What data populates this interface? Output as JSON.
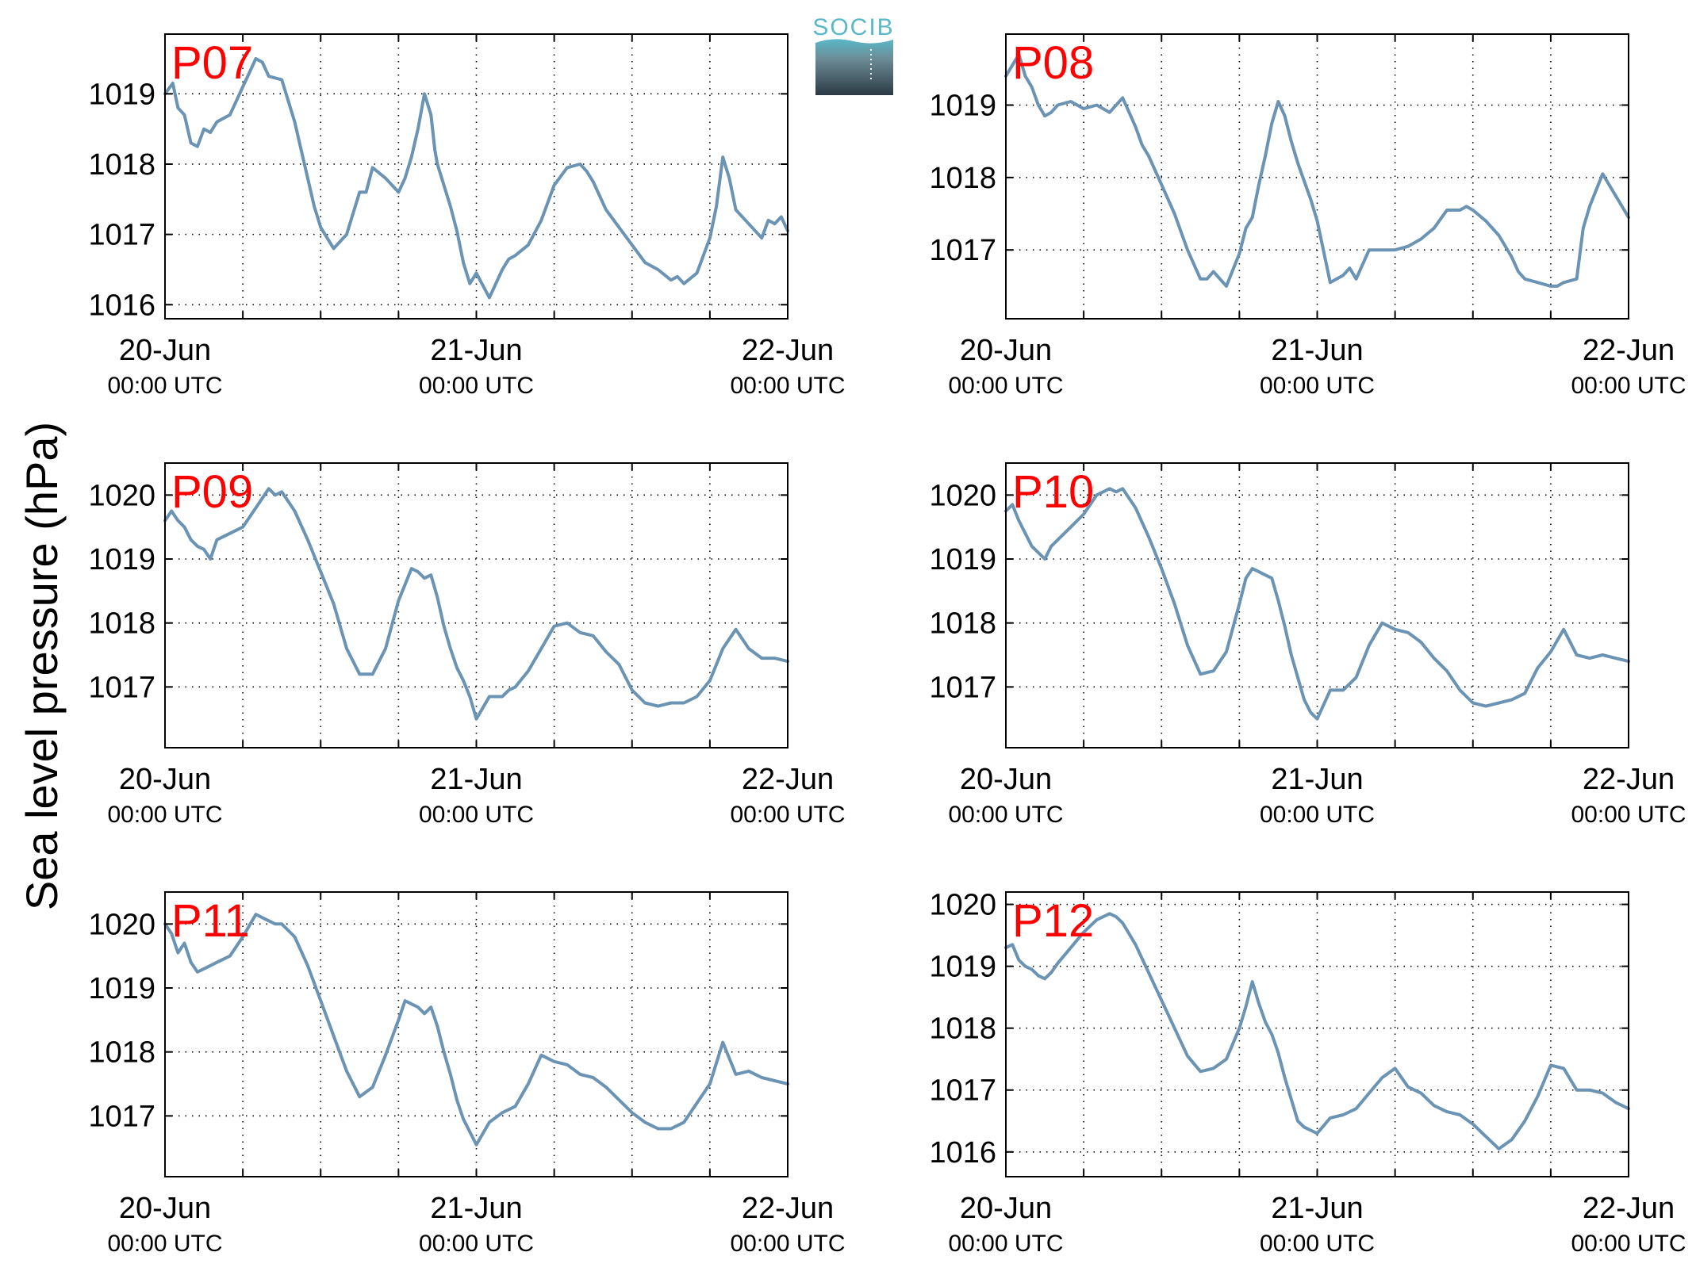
{
  "figure": {
    "ylabel": "Sea level pressure (hPa)",
    "logo_text": "SOCIB",
    "line_color": "#6a93b4",
    "label_color": "#ff0000"
  },
  "chart_data": [
    {
      "type": "line",
      "title": "P07",
      "xlim": [
        0,
        48
      ],
      "ylim": [
        1015.8,
        1019.85
      ],
      "yticks": [
        1016,
        1017,
        1018,
        1019
      ],
      "xticks": [
        0,
        6,
        12,
        18,
        24,
        30,
        36,
        42,
        48
      ],
      "xtick_labels": [
        {
          "x": 0,
          "date": "20-Jun",
          "time": "00:00 UTC"
        },
        {
          "x": 24,
          "date": "21-Jun",
          "time": "00:00 UTC"
        },
        {
          "x": 48,
          "date": "22-Jun",
          "time": "00:00 UTC"
        }
      ],
      "grid": true,
      "x": [
        0,
        0.6,
        1,
        1.5,
        2,
        2.5,
        3,
        3.5,
        4,
        5,
        6,
        7,
        7.5,
        8,
        9,
        9.5,
        10,
        10.5,
        11,
        11.5,
        12,
        13,
        14,
        15,
        15.5,
        16,
        17,
        18,
        18.5,
        19,
        19.5,
        20,
        20.5,
        20.8,
        21,
        21.5,
        22,
        22.5,
        23,
        23.5,
        24,
        25,
        26,
        26.5,
        27,
        28,
        29,
        30,
        31,
        32,
        32.5,
        33,
        34,
        35,
        36,
        37,
        38,
        39,
        39.5,
        40,
        41,
        42,
        42.5,
        43,
        43.5,
        44,
        45,
        46,
        46.5,
        47,
        47.5,
        48
      ],
      "y": [
        1019.0,
        1019.15,
        1018.8,
        1018.7,
        1018.3,
        1018.25,
        1018.5,
        1018.45,
        1018.6,
        1018.7,
        1019.1,
        1019.5,
        1019.45,
        1019.25,
        1019.2,
        1018.9,
        1018.6,
        1018.2,
        1017.8,
        1017.4,
        1017.1,
        1016.8,
        1017.0,
        1017.6,
        1017.6,
        1017.95,
        1017.8,
        1017.6,
        1017.8,
        1018.1,
        1018.5,
        1019.0,
        1018.7,
        1018.2,
        1018.0,
        1017.7,
        1017.4,
        1017.05,
        1016.6,
        1016.3,
        1016.45,
        1016.1,
        1016.5,
        1016.65,
        1016.7,
        1016.85,
        1017.2,
        1017.7,
        1017.95,
        1018.0,
        1017.9,
        1017.75,
        1017.35,
        1017.1,
        1016.85,
        1016.6,
        1016.5,
        1016.35,
        1016.4,
        1016.3,
        1016.45,
        1016.95,
        1017.4,
        1018.1,
        1017.8,
        1017.35,
        1017.15,
        1016.95,
        1017.2,
        1017.15,
        1017.25,
        1017.05
      ]
    },
    {
      "type": "line",
      "title": "P08",
      "xlim": [
        0,
        48
      ],
      "ylim": [
        1016.05,
        1019.98
      ],
      "yticks": [
        1017,
        1018,
        1019
      ],
      "xticks": [
        0,
        6,
        12,
        18,
        24,
        30,
        36,
        42,
        48
      ],
      "xtick_labels": [
        {
          "x": 0,
          "date": "20-Jun",
          "time": "00:00 UTC"
        },
        {
          "x": 24,
          "date": "21-Jun",
          "time": "00:00 UTC"
        },
        {
          "x": 48,
          "date": "22-Jun",
          "time": "00:00 UTC"
        }
      ],
      "grid": true,
      "x": [
        0,
        0.5,
        1,
        1.5,
        2,
        2.5,
        3,
        3.5,
        4,
        5,
        6,
        7,
        8,
        9,
        9.5,
        10,
        10.5,
        11,
        11.5,
        12,
        13,
        14,
        15,
        15.5,
        16,
        17,
        18,
        18.5,
        19,
        19.5,
        20,
        20.5,
        21,
        21.5,
        22,
        22.5,
        23,
        23.5,
        24,
        25,
        26,
        26.5,
        27,
        28,
        29,
        30,
        31,
        32,
        33,
        34,
        35,
        35.5,
        36,
        37,
        38,
        39,
        39.5,
        40,
        41,
        42,
        42.5,
        43,
        44,
        44.5,
        45,
        46,
        47,
        48
      ],
      "y": [
        1019.4,
        1019.55,
        1019.7,
        1019.4,
        1019.25,
        1019.0,
        1018.85,
        1018.9,
        1019.0,
        1019.05,
        1018.95,
        1019.0,
        1018.9,
        1019.1,
        1018.9,
        1018.7,
        1018.45,
        1018.3,
        1018.1,
        1017.9,
        1017.5,
        1017.0,
        1016.6,
        1016.6,
        1016.7,
        1016.5,
        1016.95,
        1017.3,
        1017.45,
        1017.9,
        1018.3,
        1018.75,
        1019.05,
        1018.85,
        1018.5,
        1018.2,
        1017.95,
        1017.7,
        1017.4,
        1016.55,
        1016.65,
        1016.75,
        1016.6,
        1017.0,
        1017.0,
        1017.0,
        1017.05,
        1017.15,
        1017.3,
        1017.55,
        1017.55,
        1017.6,
        1017.55,
        1017.4,
        1017.2,
        1016.9,
        1016.7,
        1016.6,
        1016.55,
        1016.5,
        1016.5,
        1016.55,
        1016.6,
        1017.3,
        1017.6,
        1018.05,
        1017.75,
        1017.45
      ]
    },
    {
      "type": "line",
      "title": "P09",
      "xlim": [
        0,
        48
      ],
      "ylim": [
        1016.05,
        1020.5
      ],
      "yticks": [
        1017,
        1018,
        1019,
        1020
      ],
      "xticks": [
        0,
        6,
        12,
        18,
        24,
        30,
        36,
        42,
        48
      ],
      "xtick_labels": [
        {
          "x": 0,
          "date": "20-Jun",
          "time": "00:00 UTC"
        },
        {
          "x": 24,
          "date": "21-Jun",
          "time": "00:00 UTC"
        },
        {
          "x": 48,
          "date": "22-Jun",
          "time": "00:00 UTC"
        }
      ],
      "grid": true,
      "x": [
        0,
        0.5,
        1,
        1.5,
        2,
        2.5,
        3,
        3.5,
        4,
        5,
        6,
        7,
        8,
        8.5,
        9,
        10,
        11,
        12,
        13,
        14,
        15,
        16,
        17,
        18,
        18.5,
        19,
        19.5,
        20,
        20.5,
        21,
        21.5,
        22,
        22.5,
        23,
        23.5,
        24,
        25,
        26,
        26.5,
        27,
        28,
        29,
        30,
        31,
        32,
        33,
        34,
        35,
        36,
        37,
        38,
        39,
        40,
        41,
        42,
        42.5,
        43,
        44,
        45,
        46,
        47,
        48
      ],
      "y": [
        1019.6,
        1019.75,
        1019.6,
        1019.5,
        1019.3,
        1019.2,
        1019.15,
        1019.0,
        1019.3,
        1019.4,
        1019.5,
        1019.8,
        1020.1,
        1020.0,
        1020.05,
        1019.75,
        1019.3,
        1018.8,
        1018.3,
        1017.6,
        1017.2,
        1017.2,
        1017.6,
        1018.35,
        1018.6,
        1018.85,
        1018.8,
        1018.7,
        1018.75,
        1018.4,
        1017.95,
        1017.6,
        1017.3,
        1017.1,
        1016.85,
        1016.5,
        1016.85,
        1016.85,
        1016.95,
        1017.0,
        1017.25,
        1017.6,
        1017.95,
        1018.0,
        1017.85,
        1017.8,
        1017.55,
        1017.35,
        1016.95,
        1016.75,
        1016.7,
        1016.75,
        1016.75,
        1016.85,
        1017.1,
        1017.35,
        1017.6,
        1017.9,
        1017.6,
        1017.45,
        1017.45,
        1017.4
      ]
    },
    {
      "type": "line",
      "title": "P10",
      "xlim": [
        0,
        48
      ],
      "ylim": [
        1016.05,
        1020.5
      ],
      "yticks": [
        1017,
        1018,
        1019,
        1020
      ],
      "xticks": [
        0,
        6,
        12,
        18,
        24,
        30,
        36,
        42,
        48
      ],
      "xtick_labels": [
        {
          "x": 0,
          "date": "20-Jun",
          "time": "00:00 UTC"
        },
        {
          "x": 24,
          "date": "21-Jun",
          "time": "00:00 UTC"
        },
        {
          "x": 48,
          "date": "22-Jun",
          "time": "00:00 UTC"
        }
      ],
      "grid": true,
      "x": [
        0,
        0.5,
        1,
        1.5,
        2,
        2.5,
        3,
        3.5,
        4,
        5,
        6,
        7,
        8,
        8.5,
        9,
        10,
        11,
        12,
        13,
        14,
        15,
        16,
        17,
        18,
        18.5,
        19,
        19.5,
        20,
        20.5,
        21,
        21.5,
        22,
        22.5,
        23,
        23.5,
        24,
        25,
        26,
        27,
        28,
        29,
        30,
        31,
        32,
        33,
        34,
        35,
        36,
        37,
        38,
        39,
        40,
        41,
        42,
        43,
        44,
        45,
        46,
        47,
        48
      ],
      "y": [
        1019.75,
        1019.85,
        1019.6,
        1019.4,
        1019.2,
        1019.1,
        1019.0,
        1019.2,
        1019.3,
        1019.5,
        1019.7,
        1020.0,
        1020.1,
        1020.05,
        1020.1,
        1019.8,
        1019.35,
        1018.85,
        1018.3,
        1017.65,
        1017.2,
        1017.25,
        1017.55,
        1018.3,
        1018.7,
        1018.85,
        1018.8,
        1018.75,
        1018.7,
        1018.35,
        1017.95,
        1017.5,
        1017.15,
        1016.8,
        1016.6,
        1016.5,
        1016.95,
        1016.95,
        1017.15,
        1017.65,
        1018.0,
        1017.9,
        1017.85,
        1017.7,
        1017.45,
        1017.25,
        1016.95,
        1016.75,
        1016.7,
        1016.75,
        1016.8,
        1016.9,
        1017.3,
        1017.55,
        1017.9,
        1017.5,
        1017.45,
        1017.5,
        1017.45,
        1017.4
      ]
    },
    {
      "type": "line",
      "title": "P11",
      "xlim": [
        0,
        48
      ],
      "ylim": [
        1016.05,
        1020.5
      ],
      "yticks": [
        1017,
        1018,
        1019,
        1020
      ],
      "xticks": [
        0,
        6,
        12,
        18,
        24,
        30,
        36,
        42,
        48
      ],
      "xtick_labels": [
        {
          "x": 0,
          "date": "20-Jun",
          "time": "00:00 UTC"
        },
        {
          "x": 24,
          "date": "21-Jun",
          "time": "00:00 UTC"
        },
        {
          "x": 48,
          "date": "22-Jun",
          "time": "00:00 UTC"
        }
      ],
      "grid": true,
      "x": [
        0,
        0.5,
        1,
        1.5,
        2,
        2.5,
        3,
        3.5,
        4,
        5,
        6,
        7,
        8,
        8.5,
        9,
        10,
        11,
        12,
        13,
        14,
        15,
        16,
        17,
        18,
        18.5,
        19,
        19.5,
        20,
        20.5,
        21,
        21.5,
        22,
        22.5,
        23,
        23.5,
        24,
        25,
        26,
        27,
        28,
        29,
        30,
        31,
        32,
        33,
        34,
        35,
        36,
        37,
        38,
        39,
        40,
        41,
        42,
        43,
        44,
        45,
        46,
        47,
        48
      ],
      "y": [
        1020.0,
        1019.85,
        1019.55,
        1019.7,
        1019.4,
        1019.25,
        1019.3,
        1019.35,
        1019.4,
        1019.5,
        1019.8,
        1020.15,
        1020.05,
        1020.0,
        1020.0,
        1019.8,
        1019.35,
        1018.8,
        1018.25,
        1017.7,
        1017.3,
        1017.45,
        1017.95,
        1018.5,
        1018.8,
        1018.75,
        1018.7,
        1018.6,
        1018.7,
        1018.4,
        1018.0,
        1017.65,
        1017.25,
        1016.95,
        1016.75,
        1016.55,
        1016.9,
        1017.05,
        1017.15,
        1017.5,
        1017.95,
        1017.85,
        1017.8,
        1017.65,
        1017.6,
        1017.45,
        1017.25,
        1017.05,
        1016.9,
        1016.8,
        1016.8,
        1016.9,
        1017.2,
        1017.5,
        1018.15,
        1017.65,
        1017.7,
        1017.6,
        1017.55,
        1017.5
      ]
    },
    {
      "type": "line",
      "title": "P12",
      "xlim": [
        0,
        48
      ],
      "ylim": [
        1015.6,
        1020.2
      ],
      "yticks": [
        1016,
        1017,
        1018,
        1019,
        1020
      ],
      "xticks": [
        0,
        6,
        12,
        18,
        24,
        30,
        36,
        42,
        48
      ],
      "xtick_labels": [
        {
          "x": 0,
          "date": "20-Jun",
          "time": "00:00 UTC"
        },
        {
          "x": 24,
          "date": "21-Jun",
          "time": "00:00 UTC"
        },
        {
          "x": 48,
          "date": "22-Jun",
          "time": "00:00 UTC"
        }
      ],
      "grid": true,
      "x": [
        0,
        0.5,
        1,
        1.5,
        2,
        2.5,
        3,
        3.5,
        4,
        5,
        6,
        7,
        8,
        8.5,
        9,
        10,
        11,
        12,
        13,
        14,
        15,
        16,
        17,
        18,
        18.5,
        19,
        19.5,
        20,
        20.5,
        21,
        21.5,
        22,
        22.5,
        23,
        23.5,
        24,
        25,
        26,
        27,
        28,
        29,
        30,
        31,
        32,
        33,
        34,
        35,
        36,
        37,
        38,
        39,
        40,
        41,
        42,
        43,
        44,
        45,
        46,
        47,
        48
      ],
      "y": [
        1019.3,
        1019.35,
        1019.1,
        1019.0,
        1018.95,
        1018.85,
        1018.8,
        1018.9,
        1019.05,
        1019.3,
        1019.55,
        1019.75,
        1019.85,
        1019.8,
        1019.7,
        1019.35,
        1018.9,
        1018.45,
        1018.0,
        1017.55,
        1017.3,
        1017.35,
        1017.5,
        1018.0,
        1018.35,
        1018.75,
        1018.4,
        1018.1,
        1017.9,
        1017.6,
        1017.2,
        1016.85,
        1016.5,
        1016.4,
        1016.35,
        1016.3,
        1016.55,
        1016.6,
        1016.7,
        1016.95,
        1017.2,
        1017.35,
        1017.05,
        1016.95,
        1016.75,
        1016.65,
        1016.6,
        1016.45,
        1016.25,
        1016.05,
        1016.2,
        1016.5,
        1016.9,
        1017.4,
        1017.35,
        1017.0,
        1017.0,
        1016.95,
        1016.8,
        1016.7
      ]
    }
  ]
}
